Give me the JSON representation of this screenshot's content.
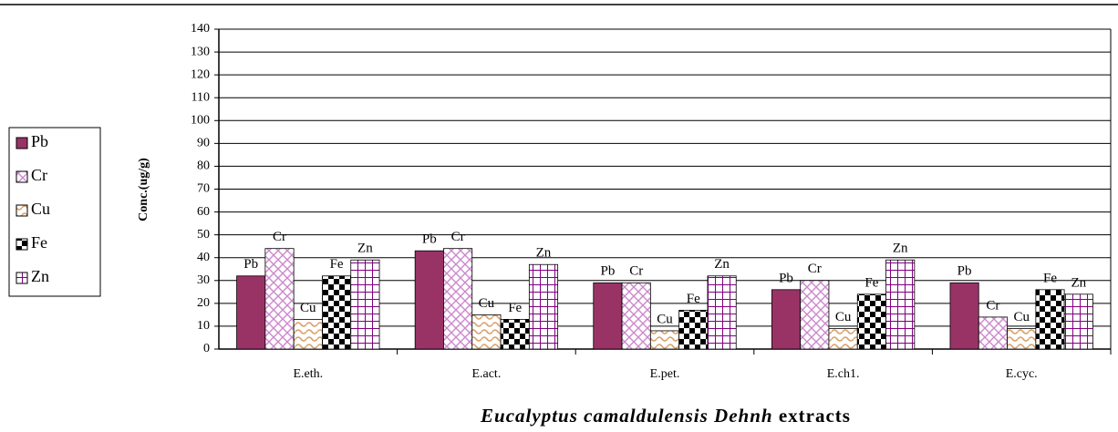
{
  "chart_data": {
    "type": "bar",
    "y_label": "Conc.(ug/g)",
    "x_label": [
      "Eucalyptus camaldulensis Dehnh",
      "extracts"
    ],
    "categories": [
      "E.eth.",
      "E.act.",
      "E.pet.",
      "E.ch1.",
      "E.cyc."
    ],
    "series": [
      {
        "name": "Pb",
        "color": "#993366",
        "values": [
          32,
          43,
          29,
          26,
          29
        ]
      },
      {
        "name": "Cr",
        "color": "#cc88cc",
        "values": [
          44,
          44,
          29,
          30,
          14
        ]
      },
      {
        "name": "Cu",
        "color": "#d9a066",
        "values": [
          13,
          15,
          8,
          9,
          9
        ]
      },
      {
        "name": "Fe",
        "color": "#000000",
        "values": [
          32,
          13,
          17,
          24,
          26
        ]
      },
      {
        "name": "Zn",
        "color": "#800080",
        "values": [
          39,
          37,
          32,
          39,
          24
        ]
      }
    ],
    "ylim": [
      0,
      140
    ],
    "yticks": [
      0,
      10,
      20,
      30,
      40,
      50,
      60,
      70,
      80,
      90,
      100,
      110,
      120,
      130,
      140
    ],
    "grid": true,
    "legend": "left"
  }
}
